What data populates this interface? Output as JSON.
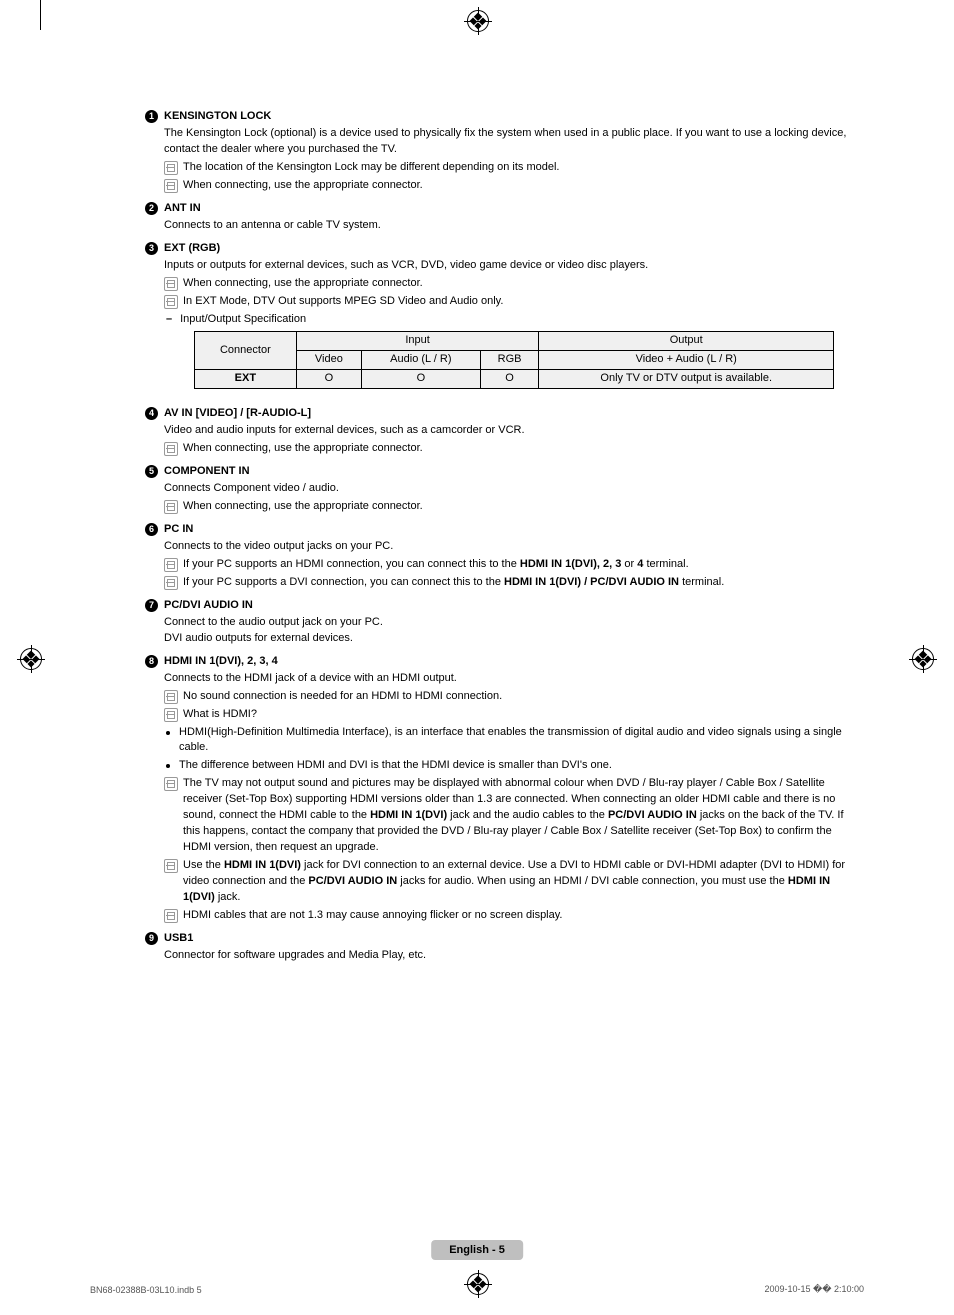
{
  "sections": [
    {
      "num": "1",
      "title": "KENSINGTON LOCK",
      "intro": "The Kensington Lock (optional) is a device used to physically fix the system when used in a public place. If you want to use a locking device, contact the dealer where you purchased the TV.",
      "notes": [
        "The location of the Kensington Lock may be different depending on its model.",
        "When connecting, use the appropriate connector."
      ]
    },
    {
      "num": "2",
      "title": "ANT IN",
      "intro": "Connects to an antenna or cable TV system."
    },
    {
      "num": "3",
      "title": "EXT (RGB)",
      "intro": "Inputs or outputs for external devices, such as VCR, DVD, video game device or video disc players.",
      "notes": [
        "When connecting, use the appropriate connector.",
        "In EXT Mode, DTV Out supports MPEG SD Video and Audio only."
      ],
      "dash": "Input/Output Specification",
      "table": {
        "header_connector": "Connector",
        "header_input": "Input",
        "header_output": "Output",
        "sub_video": "Video",
        "sub_audio": "Audio (L / R)",
        "sub_rgb": "RGB",
        "sub_out": "Video + Audio (L / R)",
        "row_label": "EXT",
        "v": "O",
        "a": "O",
        "r": "O",
        "o": "Only TV or DTV output is available."
      }
    },
    {
      "num": "4",
      "title": "AV IN [VIDEO] / [R-AUDIO-L]",
      "intro": "Video and audio inputs for external devices, such as a camcorder or VCR.",
      "notes": [
        "When connecting, use the appropriate connector."
      ]
    },
    {
      "num": "5",
      "title": "COMPONENT IN",
      "intro": "Connects Component video / audio.",
      "notes": [
        "When connecting, use the appropriate connector."
      ]
    },
    {
      "num": "6",
      "title": "PC IN",
      "intro": "Connects to the video output jacks on your PC.",
      "notes_html": [
        "If your PC supports an HDMI connection, you can connect this to the <b>HDMI IN 1(DVI), 2, 3</b> or <b>4</b> terminal.",
        "If your PC supports a DVI connection, you can connect this to the <b>HDMI IN 1(DVI) / PC/DVI AUDIO IN</b> terminal."
      ]
    },
    {
      "num": "7",
      "title": "PC/DVI AUDIO IN",
      "intro": "Connect to the audio output jack on your PC.",
      "intro2": "DVI audio outputs for external devices."
    },
    {
      "num": "8",
      "title": "HDMI IN 1(DVI), 2, 3, 4",
      "intro": "Connects to the HDMI jack of a device with an HDMI output.",
      "notes_pre": [
        "No sound connection is needed for an HDMI to HDMI connection.",
        "What is HDMI?"
      ],
      "bullets": [
        "HDMI(High-Definition Multimedia Interface), is an interface that enables the transmission of digital audio and video signals using a single cable.",
        "The difference between HDMI and DVI is that the HDMI device is smaller than DVI's one."
      ],
      "notes_post_html": [
        "The TV may not output sound and pictures may be displayed with abnormal colour when DVD / Blu-ray player / Cable Box / Satellite receiver (Set-Top Box) supporting HDMI versions older than 1.3 are connected. When connecting an older HDMI cable and there is no sound, connect the HDMI cable to the <b>HDMI IN 1(DVI)</b> jack and the audio cables to the <b>PC/DVI AUDIO IN</b> jacks on the back of the TV. If this happens, contact the company that provided the DVD / Blu-ray player / Cable Box / Satellite receiver (Set-Top Box) to confirm the HDMI version, then request an upgrade.",
        "Use the <b>HDMI IN 1(DVI)</b> jack for DVI connection to an external device. Use a DVI to HDMI cable or DVI-HDMI adapter (DVI to HDMI) for video connection and the <b>PC/DVI AUDIO IN</b> jacks for audio. When using an HDMI / DVI cable connection, you must use the <b>HDMI IN 1(DVI)</b> jack.",
        "HDMI cables that are not 1.3 may cause annoying flicker or no screen display."
      ]
    },
    {
      "num": "9",
      "title": "USB1",
      "intro": "Connector for software upgrades and Media Play, etc."
    }
  ],
  "footer_pill": "English - 5",
  "footer_left": "BN68-02388B-03L10.indb   5",
  "footer_right": "2009-10-15   �� 2:10:00"
}
